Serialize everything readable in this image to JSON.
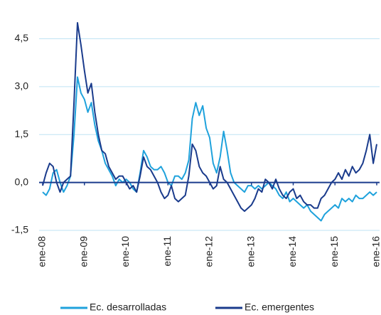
{
  "chart_data": {
    "type": "line",
    "categories": [
      "ene-08",
      null,
      null,
      null,
      null,
      null,
      null,
      null,
      null,
      null,
      null,
      null,
      "ene-09",
      null,
      null,
      null,
      null,
      null,
      null,
      null,
      null,
      null,
      null,
      null,
      "ene-10",
      null,
      null,
      null,
      null,
      null,
      null,
      null,
      null,
      null,
      null,
      null,
      "ene-11",
      null,
      null,
      null,
      null,
      null,
      null,
      null,
      null,
      null,
      null,
      null,
      "ene-12",
      null,
      null,
      null,
      null,
      null,
      null,
      null,
      null,
      null,
      null,
      null,
      "ene-13",
      null,
      null,
      null,
      null,
      null,
      null,
      null,
      null,
      null,
      null,
      null,
      "ene-14",
      null,
      null,
      null,
      null,
      null,
      null,
      null,
      null,
      null,
      null,
      null,
      "ene-15",
      null,
      null,
      null,
      null,
      null,
      null,
      null,
      null,
      null,
      null,
      null,
      "ene-16"
    ],
    "series": [
      {
        "name": "Ec. desarrolladas",
        "color": "#1fa2dc",
        "values": [
          -0.3,
          -0.4,
          -0.2,
          0.3,
          0.4,
          0.0,
          -0.3,
          -0.1,
          0.2,
          1.5,
          3.3,
          2.8,
          2.6,
          2.2,
          2.5,
          1.8,
          1.3,
          1.0,
          0.6,
          0.4,
          0.2,
          -0.1,
          0.1,
          0.0,
          0.1,
          0.0,
          -0.2,
          -0.3,
          0.3,
          1.0,
          0.8,
          0.5,
          0.4,
          0.4,
          0.5,
          0.3,
          0.0,
          -0.1,
          0.2,
          0.2,
          0.1,
          0.3,
          0.7,
          2.0,
          2.5,
          2.1,
          2.4,
          1.7,
          1.4,
          0.6,
          0.3,
          0.8,
          1.6,
          1.0,
          0.3,
          0.0,
          -0.1,
          -0.2,
          -0.3,
          -0.1,
          -0.1,
          -0.2,
          -0.1,
          -0.2,
          -0.1,
          0.0,
          -0.1,
          -0.2,
          -0.4,
          -0.5,
          -0.3,
          -0.6,
          -0.5,
          -0.6,
          -0.7,
          -0.8,
          -0.7,
          -0.9,
          -1.0,
          -1.1,
          -1.2,
          -1.0,
          -0.9,
          -0.8,
          -0.7,
          -0.8,
          -0.5,
          -0.6,
          -0.5,
          -0.6,
          -0.4,
          -0.5,
          -0.5,
          -0.4,
          -0.3,
          -0.4,
          -0.3
        ]
      },
      {
        "name": "Ec. emergentes",
        "color": "#1a3b8c",
        "values": [
          -0.1,
          0.3,
          0.6,
          0.5,
          0.0,
          -0.3,
          0.0,
          0.1,
          0.2,
          2.5,
          5.0,
          4.3,
          3.5,
          2.8,
          3.1,
          2.2,
          1.5,
          1.0,
          0.9,
          0.5,
          0.3,
          0.1,
          0.2,
          0.2,
          0.0,
          -0.2,
          -0.1,
          -0.3,
          0.2,
          0.8,
          0.5,
          0.4,
          0.2,
          0.0,
          -0.3,
          -0.5,
          -0.4,
          -0.1,
          -0.5,
          -0.6,
          -0.5,
          -0.4,
          0.2,
          1.2,
          1.0,
          0.5,
          0.3,
          0.2,
          0.0,
          -0.2,
          -0.1,
          0.5,
          0.1,
          0.0,
          -0.2,
          -0.4,
          -0.6,
          -0.8,
          -0.9,
          -0.8,
          -0.7,
          -0.5,
          -0.2,
          -0.3,
          0.1,
          0.0,
          -0.2,
          0.1,
          -0.2,
          -0.4,
          -0.5,
          -0.3,
          -0.2,
          -0.5,
          -0.4,
          -0.6,
          -0.7,
          -0.7,
          -0.8,
          -0.8,
          -0.5,
          -0.4,
          -0.2,
          0.0,
          0.1,
          0.3,
          0.1,
          0.4,
          0.2,
          0.5,
          0.3,
          0.4,
          0.6,
          1.0,
          1.5,
          0.6,
          1.2
        ]
      }
    ],
    "ylim": [
      -1.5,
      5.0
    ],
    "yticks": [
      {
        "value": -1.5,
        "label": "-1,5"
      },
      {
        "value": 0,
        "label": "0,0"
      },
      {
        "value": 1.5,
        "label": "1,5"
      },
      {
        "value": 3.0,
        "label": "3,0"
      },
      {
        "value": 4.5,
        "label": "4,5"
      }
    ],
    "grid": true,
    "legend": "bottom"
  }
}
